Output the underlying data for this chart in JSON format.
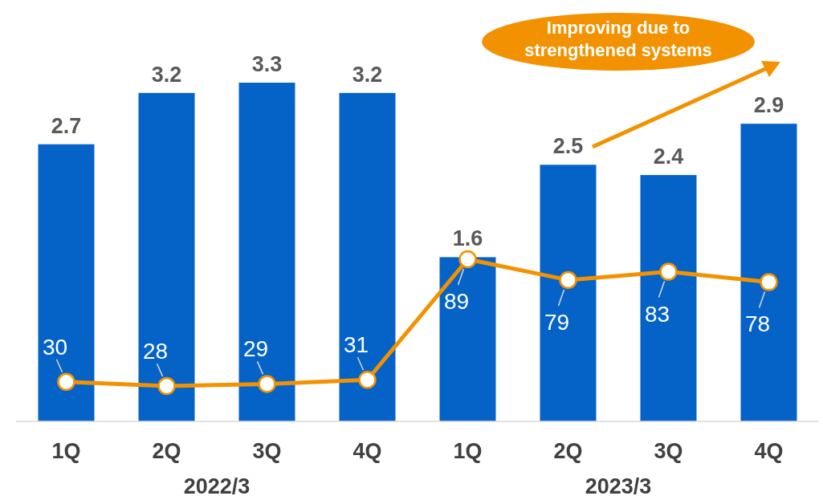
{
  "chart_data": {
    "type": "bar",
    "categories": [
      "1Q",
      "2Q",
      "3Q",
      "4Q",
      "1Q",
      "2Q",
      "3Q",
      "4Q"
    ],
    "series": [
      {
        "color": "#0563c8",
        "values": [
          2.7,
          3.2,
          3.3,
          3.2,
          1.6,
          2.5,
          2.4,
          2.9
        ]
      },
      {
        "type": "line",
        "axis": "y2",
        "color": "#f39200",
        "values": [
          30,
          28,
          29,
          31,
          89,
          79,
          83,
          78
        ]
      }
    ],
    "data_labels": true,
    "marker": "circle",
    "tick_labels": "x",
    "annotations": [
      "2022/3",
      "2023/3",
      "Improving due to\nstrengthened systems"
    ]
  }
}
